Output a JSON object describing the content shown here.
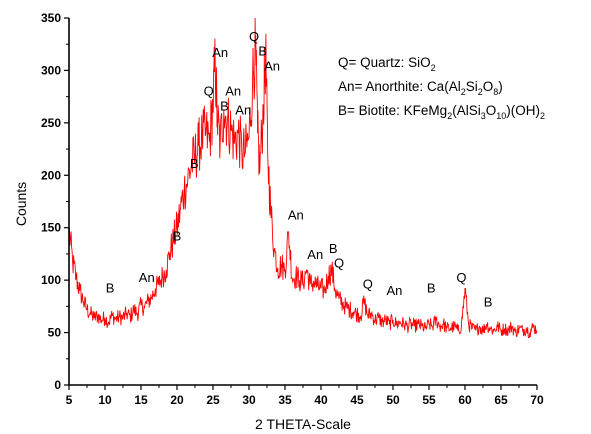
{
  "chart_data": {
    "type": "line",
    "title": "",
    "xlabel": "2 THETA-Scale",
    "ylabel": "Counts",
    "xlim": [
      5,
      70
    ],
    "ylim": [
      0,
      350
    ],
    "xticks": [
      5,
      10,
      15,
      20,
      25,
      30,
      35,
      40,
      45,
      50,
      55,
      60,
      65,
      70
    ],
    "yticks": [
      0,
      50,
      100,
      150,
      200,
      250,
      300,
      350
    ],
    "grid": false,
    "line_color": "#ff0000",
    "series": [
      {
        "values_description": "",
        "x": [
          5,
          5.5,
          6,
          6.5,
          7,
          7.5,
          8,
          8.5,
          9,
          9.5,
          10,
          10.5,
          11,
          11.5,
          12,
          12.5,
          13,
          13.5,
          14,
          14.5,
          15,
          15.5,
          16,
          16.5,
          17,
          17.5,
          18,
          18.5,
          19,
          19.5,
          20,
          20.5,
          21,
          21.5,
          22,
          22.5,
          23,
          23.5,
          24,
          24.5,
          25,
          25.3,
          25.6,
          26,
          26.5,
          27,
          27.5,
          28,
          28.5,
          29,
          29.5,
          30,
          30.5,
          30.9,
          31.2,
          31.5,
          32,
          32.3,
          32.6,
          33,
          33.5,
          34,
          34.5,
          35,
          35.5,
          36,
          36.5,
          37,
          37.5,
          38,
          38.5,
          39,
          39.5,
          40,
          40.5,
          41,
          41.5,
          42,
          42.5,
          43,
          43.5,
          44,
          44.5,
          45,
          45.5,
          46,
          46.5,
          47,
          47.5,
          48,
          48.5,
          49,
          49.5,
          50,
          50.5,
          51,
          51.5,
          52,
          52.5,
          53,
          53.5,
          54,
          54.5,
          55,
          55.5,
          56,
          56.5,
          57,
          57.5,
          58,
          58.5,
          59,
          59.5,
          60,
          60.5,
          61,
          61.5,
          62,
          62.5,
          63,
          63.5,
          64,
          64.5,
          65,
          65.5,
          66,
          66.5,
          67,
          67.5,
          68,
          68.5,
          69,
          69.5,
          70
        ],
        "y": [
          148,
          118,
          102,
          90,
          80,
          72,
          68,
          64,
          66,
          62,
          64,
          60,
          66,
          63,
          65,
          64,
          68,
          65,
          72,
          68,
          76,
          74,
          80,
          84,
          92,
          96,
          104,
          110,
          126,
          138,
          150,
          168,
          186,
          196,
          210,
          218,
          228,
          236,
          240,
          232,
          268,
          308,
          252,
          230,
          262,
          252,
          244,
          232,
          240,
          222,
          222,
          236,
          292,
          322,
          240,
          204,
          266,
          318,
          220,
          168,
          130,
          112,
          114,
          110,
          146,
          102,
          104,
          100,
          98,
          110,
          96,
          98,
          94,
          92,
          90,
          104,
          110,
          90,
          82,
          78,
          74,
          72,
          70,
          68,
          66,
          80,
          66,
          68,
          62,
          64,
          60,
          62,
          58,
          62,
          58,
          60,
          58,
          56,
          58,
          56,
          58,
          56,
          54,
          58,
          56,
          62,
          56,
          58,
          54,
          54,
          56,
          52,
          56,
          92,
          58,
          54,
          52,
          56,
          52,
          58,
          54,
          52,
          56,
          52,
          54,
          52,
          56,
          50,
          54,
          52,
          54,
          50,
          56,
          52
        ]
      }
    ],
    "peak_labels": [
      {
        "text": "B",
        "x": 10.7,
        "y": 88
      },
      {
        "text": "An",
        "x": 15.8,
        "y": 98
      },
      {
        "text": "B",
        "x": 20.0,
        "y": 138
      },
      {
        "text": "B",
        "x": 22.4,
        "y": 207
      },
      {
        "text": "Q",
        "x": 24.4,
        "y": 276
      },
      {
        "text": "An",
        "x": 26.0,
        "y": 313
      },
      {
        "text": "B",
        "x": 26.6,
        "y": 262
      },
      {
        "text": "An",
        "x": 27.8,
        "y": 276
      },
      {
        "text": "An",
        "x": 29.2,
        "y": 258
      },
      {
        "text": "Q",
        "x": 30.7,
        "y": 328
      },
      {
        "text": "B",
        "x": 31.9,
        "y": 314
      },
      {
        "text": "An",
        "x": 33.2,
        "y": 300
      },
      {
        "text": "An",
        "x": 36.5,
        "y": 158
      },
      {
        "text": "An",
        "x": 39.2,
        "y": 120
      },
      {
        "text": "B",
        "x": 41.7,
        "y": 126
      },
      {
        "text": "Q",
        "x": 42.5,
        "y": 112
      },
      {
        "text": "Q",
        "x": 46.5,
        "y": 92
      },
      {
        "text": "An",
        "x": 50.2,
        "y": 86
      },
      {
        "text": "B",
        "x": 55.3,
        "y": 88
      },
      {
        "text": "Q",
        "x": 59.5,
        "y": 98
      },
      {
        "text": "B",
        "x": 63.2,
        "y": 75
      }
    ],
    "legend": {
      "placement": "top-right",
      "entries": [
        {
          "key": "quartz",
          "prefix": "Q= Quartz: SiO",
          "formula": [
            [
              "SiO",
              ""
            ],
            [
              "2",
              "sub"
            ]
          ]
        },
        {
          "key": "anorthite",
          "prefix": "An= Anorthite: Ca(Al",
          "formula": [
            [
              "Ca(Al",
              ""
            ],
            [
              "2",
              "sub"
            ],
            [
              "Si",
              ""
            ],
            [
              "2",
              "sub"
            ],
            [
              "O",
              ""
            ],
            [
              "8",
              "sub"
            ],
            [
              ")",
              ""
            ]
          ]
        },
        {
          "key": "biotite",
          "prefix": "B= Biotite: KFeMg",
          "formula": [
            [
              "KFeMg",
              ""
            ],
            [
              "2",
              "sub"
            ],
            [
              "(AlSi",
              ""
            ],
            [
              "3",
              "sub"
            ],
            [
              "O",
              ""
            ],
            [
              "10",
              "sub"
            ],
            [
              ")(OH)",
              ""
            ],
            [
              "2",
              "sub"
            ]
          ]
        }
      ],
      "lines": [
        {
          "name_part": "Q= Quartz: ",
          "formula": [
            [
              "SiO",
              ""
            ],
            [
              "2",
              "sub"
            ]
          ]
        },
        {
          "name_part": "An= Anorthite: ",
          "formula": [
            [
              "Ca(Al",
              ""
            ],
            [
              "2",
              "sub"
            ],
            [
              "Si",
              ""
            ],
            [
              "2",
              "sub"
            ],
            [
              "O",
              ""
            ],
            [
              "8",
              "sub"
            ],
            [
              ")",
              ""
            ]
          ]
        },
        {
          "name_part": "B= Biotite: ",
          "formula": [
            [
              "KFeMg",
              ""
            ],
            [
              "2",
              "sub"
            ],
            [
              "(AlSi",
              ""
            ],
            [
              "3",
              "sub"
            ],
            [
              "O",
              ""
            ],
            [
              "10",
              "sub"
            ],
            [
              ")(OH)",
              ""
            ],
            [
              "2",
              "sub"
            ]
          ]
        }
      ]
    }
  }
}
